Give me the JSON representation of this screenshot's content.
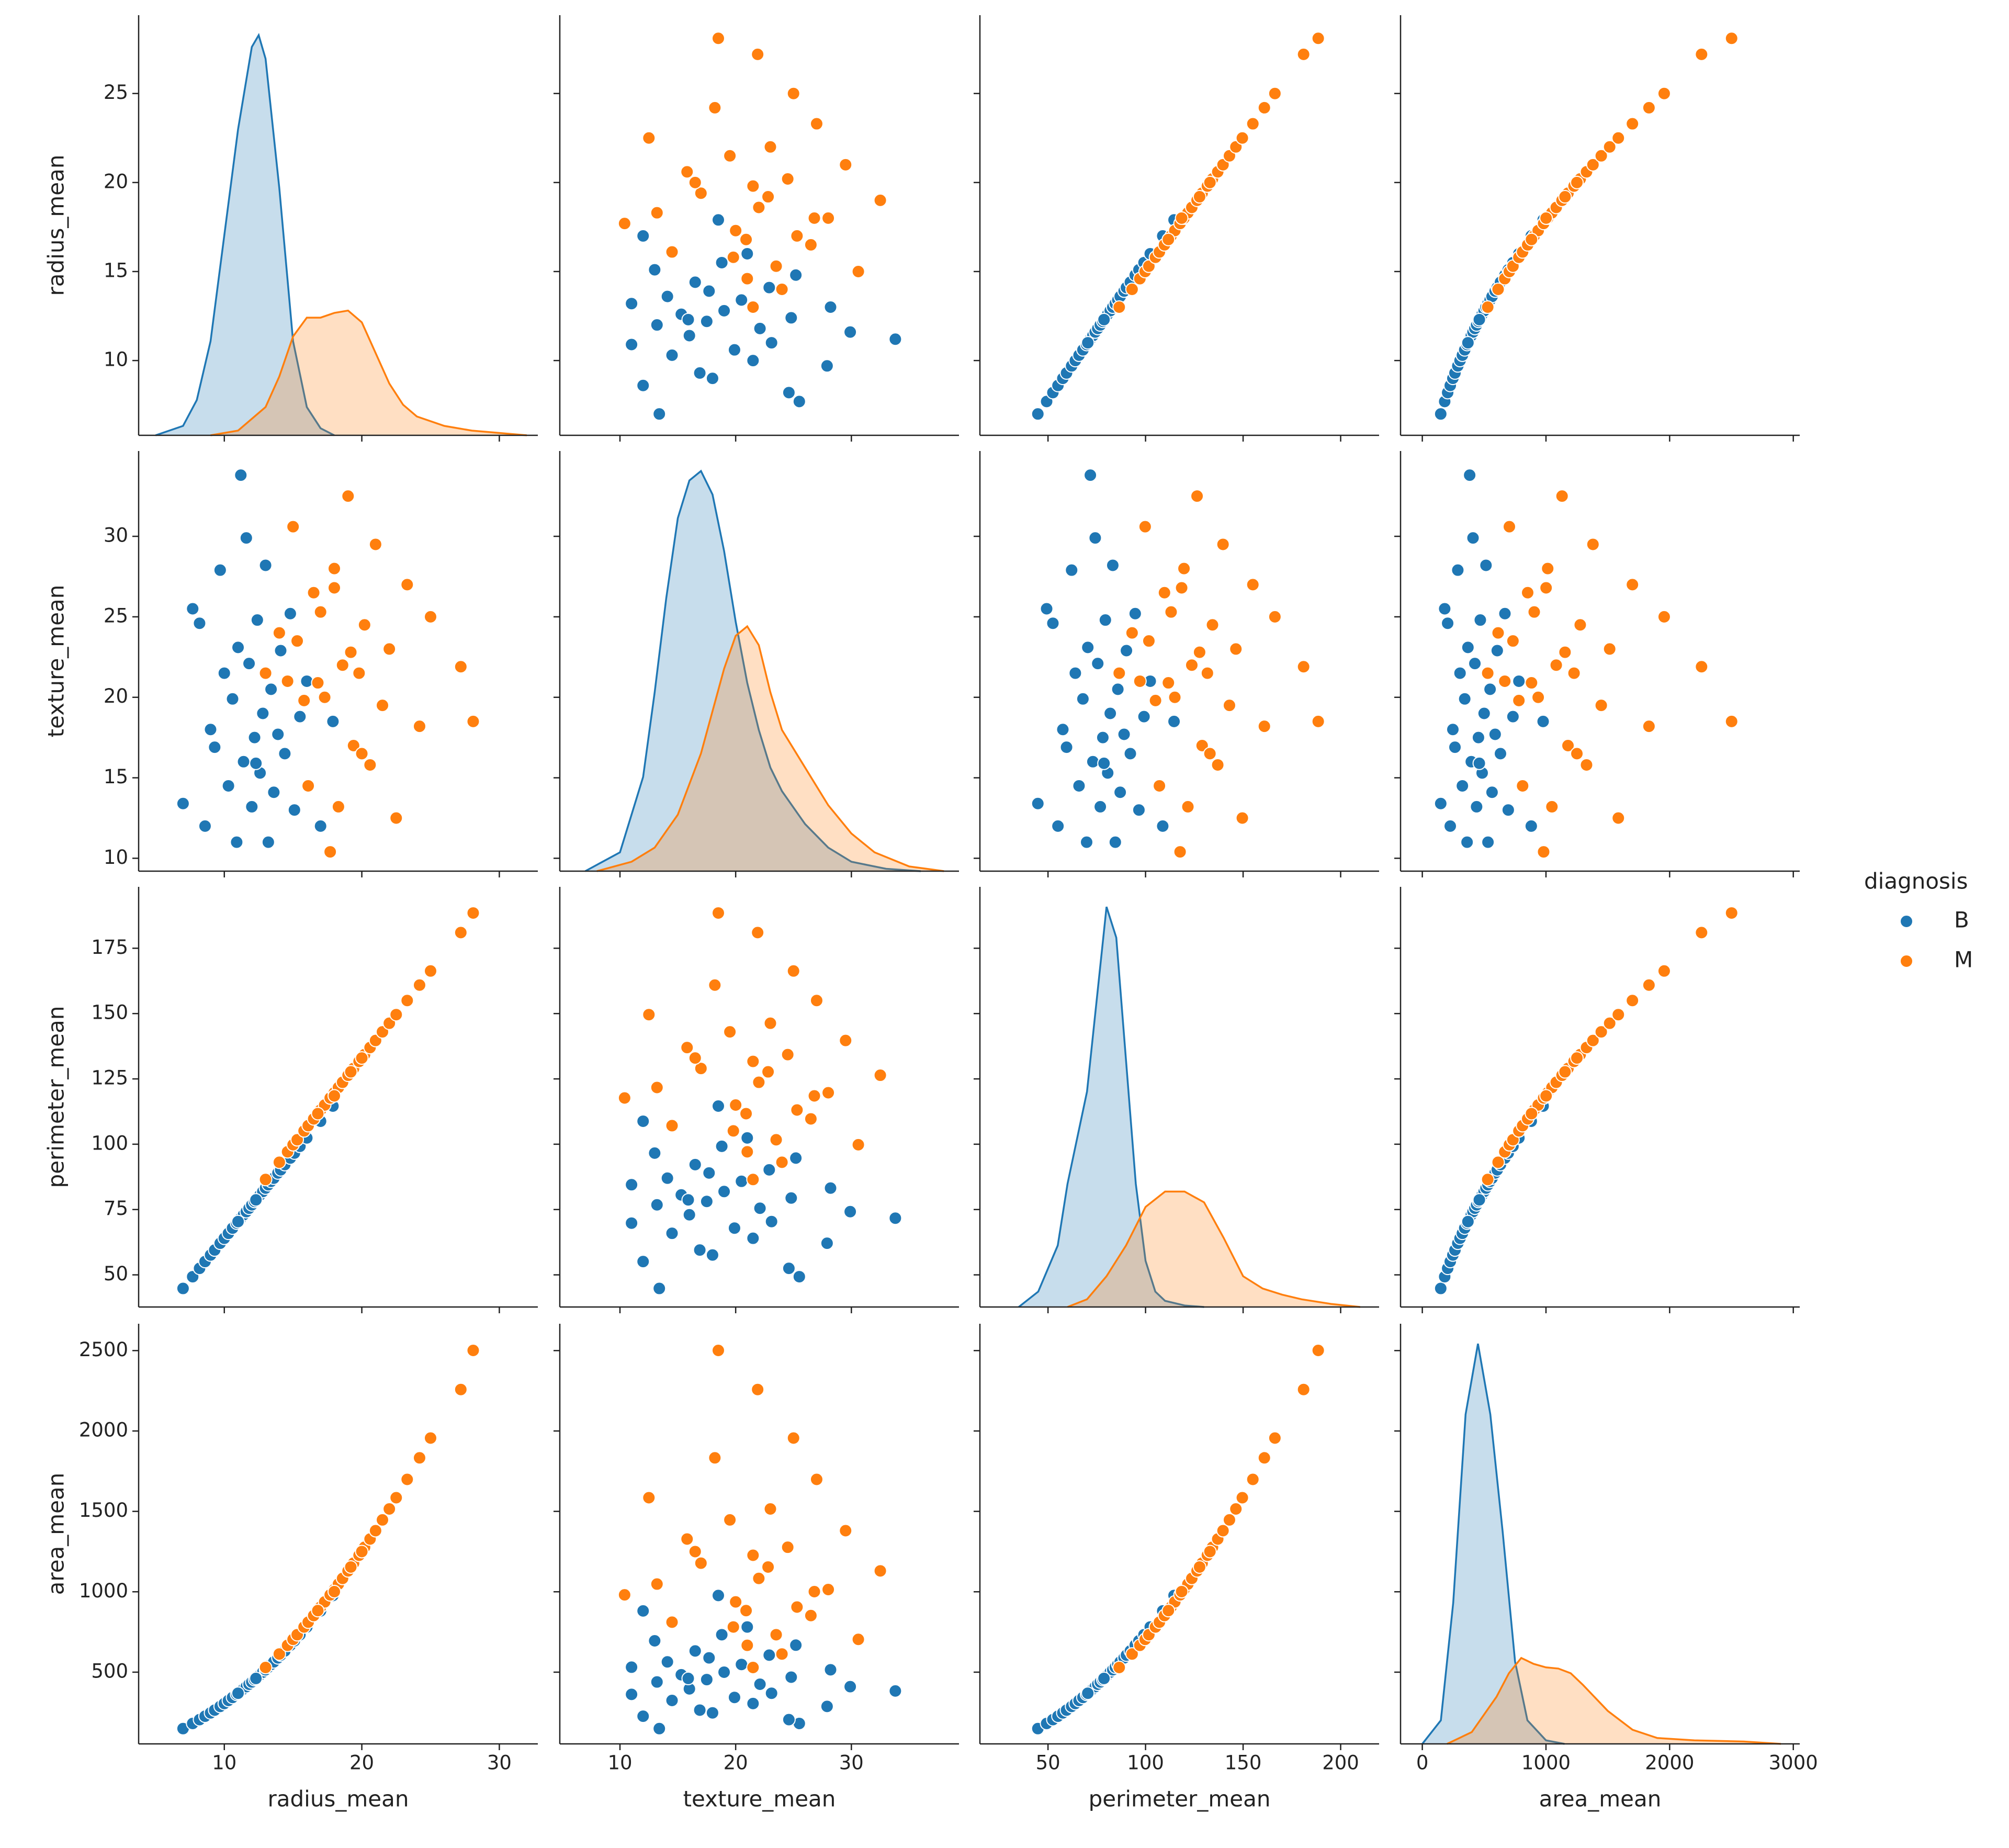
{
  "chart_data": {
    "type": "pairplot",
    "variables": [
      "radius_mean",
      "texture_mean",
      "perimeter_mean",
      "area_mean"
    ],
    "axes": [
      {
        "xlim": [
          3.77,
          32.8
        ],
        "xticks": [
          10,
          20,
          30
        ],
        "ylim": [
          5.8,
          29.4
        ],
        "yticks": [
          10,
          15,
          20,
          25
        ]
      },
      {
        "xlim": [
          4.8,
          39.3
        ],
        "xticks": [
          10,
          20,
          30
        ],
        "ylim": [
          9.2,
          35.3
        ],
        "yticks": [
          10,
          15,
          20,
          25,
          30
        ]
      },
      {
        "xlim": [
          15.1,
          219.7
        ],
        "xticks": [
          50,
          100,
          150,
          200
        ],
        "ylim": [
          37.7,
          198.5
        ],
        "yticks": [
          50,
          75,
          100,
          125,
          150,
          175
        ]
      },
      {
        "xlim": [
          -176,
          3052
        ],
        "xticks": [
          0,
          1000,
          2000,
          3000
        ],
        "ylim": [
          54,
          2667
        ],
        "yticks": [
          500,
          1000,
          1500,
          2000,
          2500
        ]
      }
    ],
    "legend_title": "diagnosis",
    "legend_position": "right",
    "series": [
      {
        "name": "B",
        "color": "#1f77b4",
        "data": [
          [
            7.0,
            7.7,
            8.2,
            8.6,
            9.0,
            9.3,
            9.7,
            10.0,
            10.3,
            10.6,
            10.9,
            11.2,
            11.4,
            11.6,
            11.8,
            12.0,
            12.2,
            12.4,
            12.6,
            12.8,
            13.0,
            13.2,
            13.4,
            13.6,
            13.9,
            14.1,
            14.4,
            14.8,
            15.1,
            15.5,
            16.0,
            17.0,
            17.9,
            11.0,
            12.3
          ],
          [
            13.4,
            25.5,
            24.6,
            12.0,
            18.0,
            16.9,
            27.9,
            21.5,
            14.5,
            19.9,
            11.0,
            33.8,
            16.0,
            29.9,
            22.1,
            13.2,
            17.5,
            24.8,
            15.3,
            19.0,
            28.2,
            11.0,
            20.5,
            14.1,
            17.7,
            22.9,
            16.5,
            25.2,
            13.0,
            18.8,
            21.0,
            12.0,
            18.5,
            23.1,
            15.9
          ],
          [
            44.8,
            49.3,
            52.5,
            55.1,
            57.6,
            59.5,
            62.1,
            64.0,
            65.9,
            67.9,
            69.8,
            71.7,
            73.0,
            74.2,
            75.5,
            76.8,
            78.1,
            79.4,
            80.6,
            81.9,
            83.2,
            84.5,
            85.8,
            87.0,
            89.0,
            90.2,
            92.2,
            94.7,
            96.6,
            99.2,
            102.4,
            108.8,
            114.6,
            70.4,
            78.7
          ],
          [
            149,
            181,
            205,
            226,
            247,
            264,
            287,
            305,
            324,
            343,
            362,
            383,
            396,
            410,
            425,
            439,
            454,
            469,
            484,
            500,
            515,
            531,
            548,
            564,
            589,
            606,
            632,
            668,
            695,
            733,
            781,
            881,
            977,
            369,
            461
          ]
        ],
        "kde": [
          {
            "x": [
              5,
              7,
              8,
              9,
              10,
              11,
              12,
              12.5,
              13,
              14,
              15,
              16,
              17,
              18
            ],
            "density": [
              0,
              0.004,
              0.015,
              0.04,
              0.085,
              0.13,
              0.165,
              0.17,
              0.16,
              0.105,
              0.04,
              0.012,
              0.003,
              0
            ]
          },
          {
            "x": [
              7,
              10,
              12,
              13,
              14,
              15,
              16,
              17,
              18,
              19,
              20,
              21,
              22,
              23,
              24,
              26,
              28,
              30,
              33,
              36
            ],
            "density": [
              0,
              0.004,
              0.02,
              0.038,
              0.058,
              0.075,
              0.083,
              0.085,
              0.08,
              0.068,
              0.053,
              0.04,
              0.03,
              0.022,
              0.017,
              0.01,
              0.005,
              0.002,
              0.0005,
              0
            ]
          },
          {
            "x": [
              35,
              45,
              55,
              60,
              65,
              70,
              75,
              80,
              85,
              90,
              95,
              100,
              105,
              110,
              120,
              130
            ],
            "density": [
              0,
              0.001,
              0.004,
              0.008,
              0.011,
              0.014,
              0.02,
              0.026,
              0.024,
              0.016,
              0.008,
              0.003,
              0.001,
              0.0004,
              0.0001,
              0
            ]
          },
          {
            "x": [
              0,
              150,
              250,
              350,
              450,
              550,
              650,
              750,
              850,
              1000,
              1150
            ],
            "density": [
              0,
              0.0002,
              0.0012,
              0.0028,
              0.0034,
              0.0028,
              0.0018,
              0.0007,
              0.0002,
              3e-05,
              0
            ]
          }
        ]
      },
      {
        "name": "M",
        "color": "#ff7f0e",
        "data": [
          [
            13.0,
            14.0,
            14.6,
            15.0,
            15.3,
            15.8,
            16.1,
            16.5,
            17.0,
            17.3,
            17.7,
            18.0,
            18.3,
            18.6,
            19.0,
            19.4,
            19.8,
            20.2,
            20.6,
            21.0,
            21.5,
            22.0,
            22.5,
            23.3,
            24.2,
            25.0,
            27.2,
            28.1,
            18.0,
            16.8,
            20.0,
            19.2
          ],
          [
            21.5,
            24.0,
            21.0,
            30.6,
            23.5,
            19.8,
            14.5,
            26.5,
            25.3,
            20.0,
            10.4,
            28.0,
            13.2,
            22.0,
            32.5,
            17.0,
            21.5,
            24.5,
            15.8,
            29.5,
            19.5,
            23.0,
            12.5,
            27.0,
            18.2,
            25.0,
            21.9,
            18.5,
            26.8,
            20.9,
            16.5,
            22.8
          ],
          [
            86.5,
            93.1,
            97.1,
            99.8,
            101.7,
            105.1,
            107.1,
            109.7,
            113.1,
            115.0,
            117.7,
            119.7,
            121.7,
            123.7,
            126.4,
            129.0,
            131.7,
            134.3,
            137.0,
            139.7,
            143.0,
            146.3,
            149.6,
            155.0,
            160.9,
            166.3,
            181.0,
            188.5,
            118.5,
            111.7,
            133.0,
            127.7
          ],
          [
            529,
            613,
            667,
            704,
            733,
            781,
            811,
            852,
            905,
            937,
            981,
            1014,
            1048,
            1083,
            1130,
            1178,
            1227,
            1277,
            1328,
            1380,
            1447,
            1515,
            1585,
            1699,
            1833,
            1956,
            2258,
            2501,
            1001,
            883,
            1250,
            1154
          ]
        ],
        "kde": [
          {
            "x": [
              9,
              11,
              13,
              14,
              15,
              16,
              17,
              18,
              19,
              20,
              21,
              22,
              23,
              24,
              26,
              28,
              30,
              32
            ],
            "density": [
              0,
              0.002,
              0.012,
              0.025,
              0.042,
              0.05,
              0.05,
              0.052,
              0.053,
              0.048,
              0.035,
              0.022,
              0.013,
              0.008,
              0.004,
              0.002,
              0.001,
              0
            ]
          },
          {
            "x": [
              8,
              11,
              13,
              15,
              17,
              19,
              20,
              21,
              22,
              23,
              24,
              25,
              26,
              28,
              30,
              32,
              35,
              38
            ],
            "density": [
              0,
              0.002,
              0.005,
              0.012,
              0.025,
              0.043,
              0.05,
              0.052,
              0.048,
              0.038,
              0.03,
              0.026,
              0.022,
              0.014,
              0.008,
              0.004,
              0.001,
              0
            ]
          },
          {
            "x": [
              60,
              70,
              80,
              90,
              100,
              110,
              120,
              130,
              140,
              150,
              160,
              170,
              180,
              195,
              210
            ],
            "density": [
              0,
              0.0005,
              0.002,
              0.004,
              0.0065,
              0.0075,
              0.0075,
              0.0068,
              0.0045,
              0.002,
              0.0012,
              0.0008,
              0.0005,
              0.0002,
              0
            ]
          },
          {
            "x": [
              200,
              400,
              600,
              700,
              800,
              900,
              1000,
              1100,
              1200,
              1300,
              1500,
              1700,
              1900,
              2200,
              2600,
              2900
            ],
            "density": [
              0,
              0.0001,
              0.0004,
              0.0006,
              0.00073,
              0.00068,
              0.00065,
              0.00064,
              0.0006,
              0.0005,
              0.00028,
              0.00012,
              5e-05,
              3e-05,
              2e-05,
              0
            ]
          }
        ]
      }
    ]
  }
}
